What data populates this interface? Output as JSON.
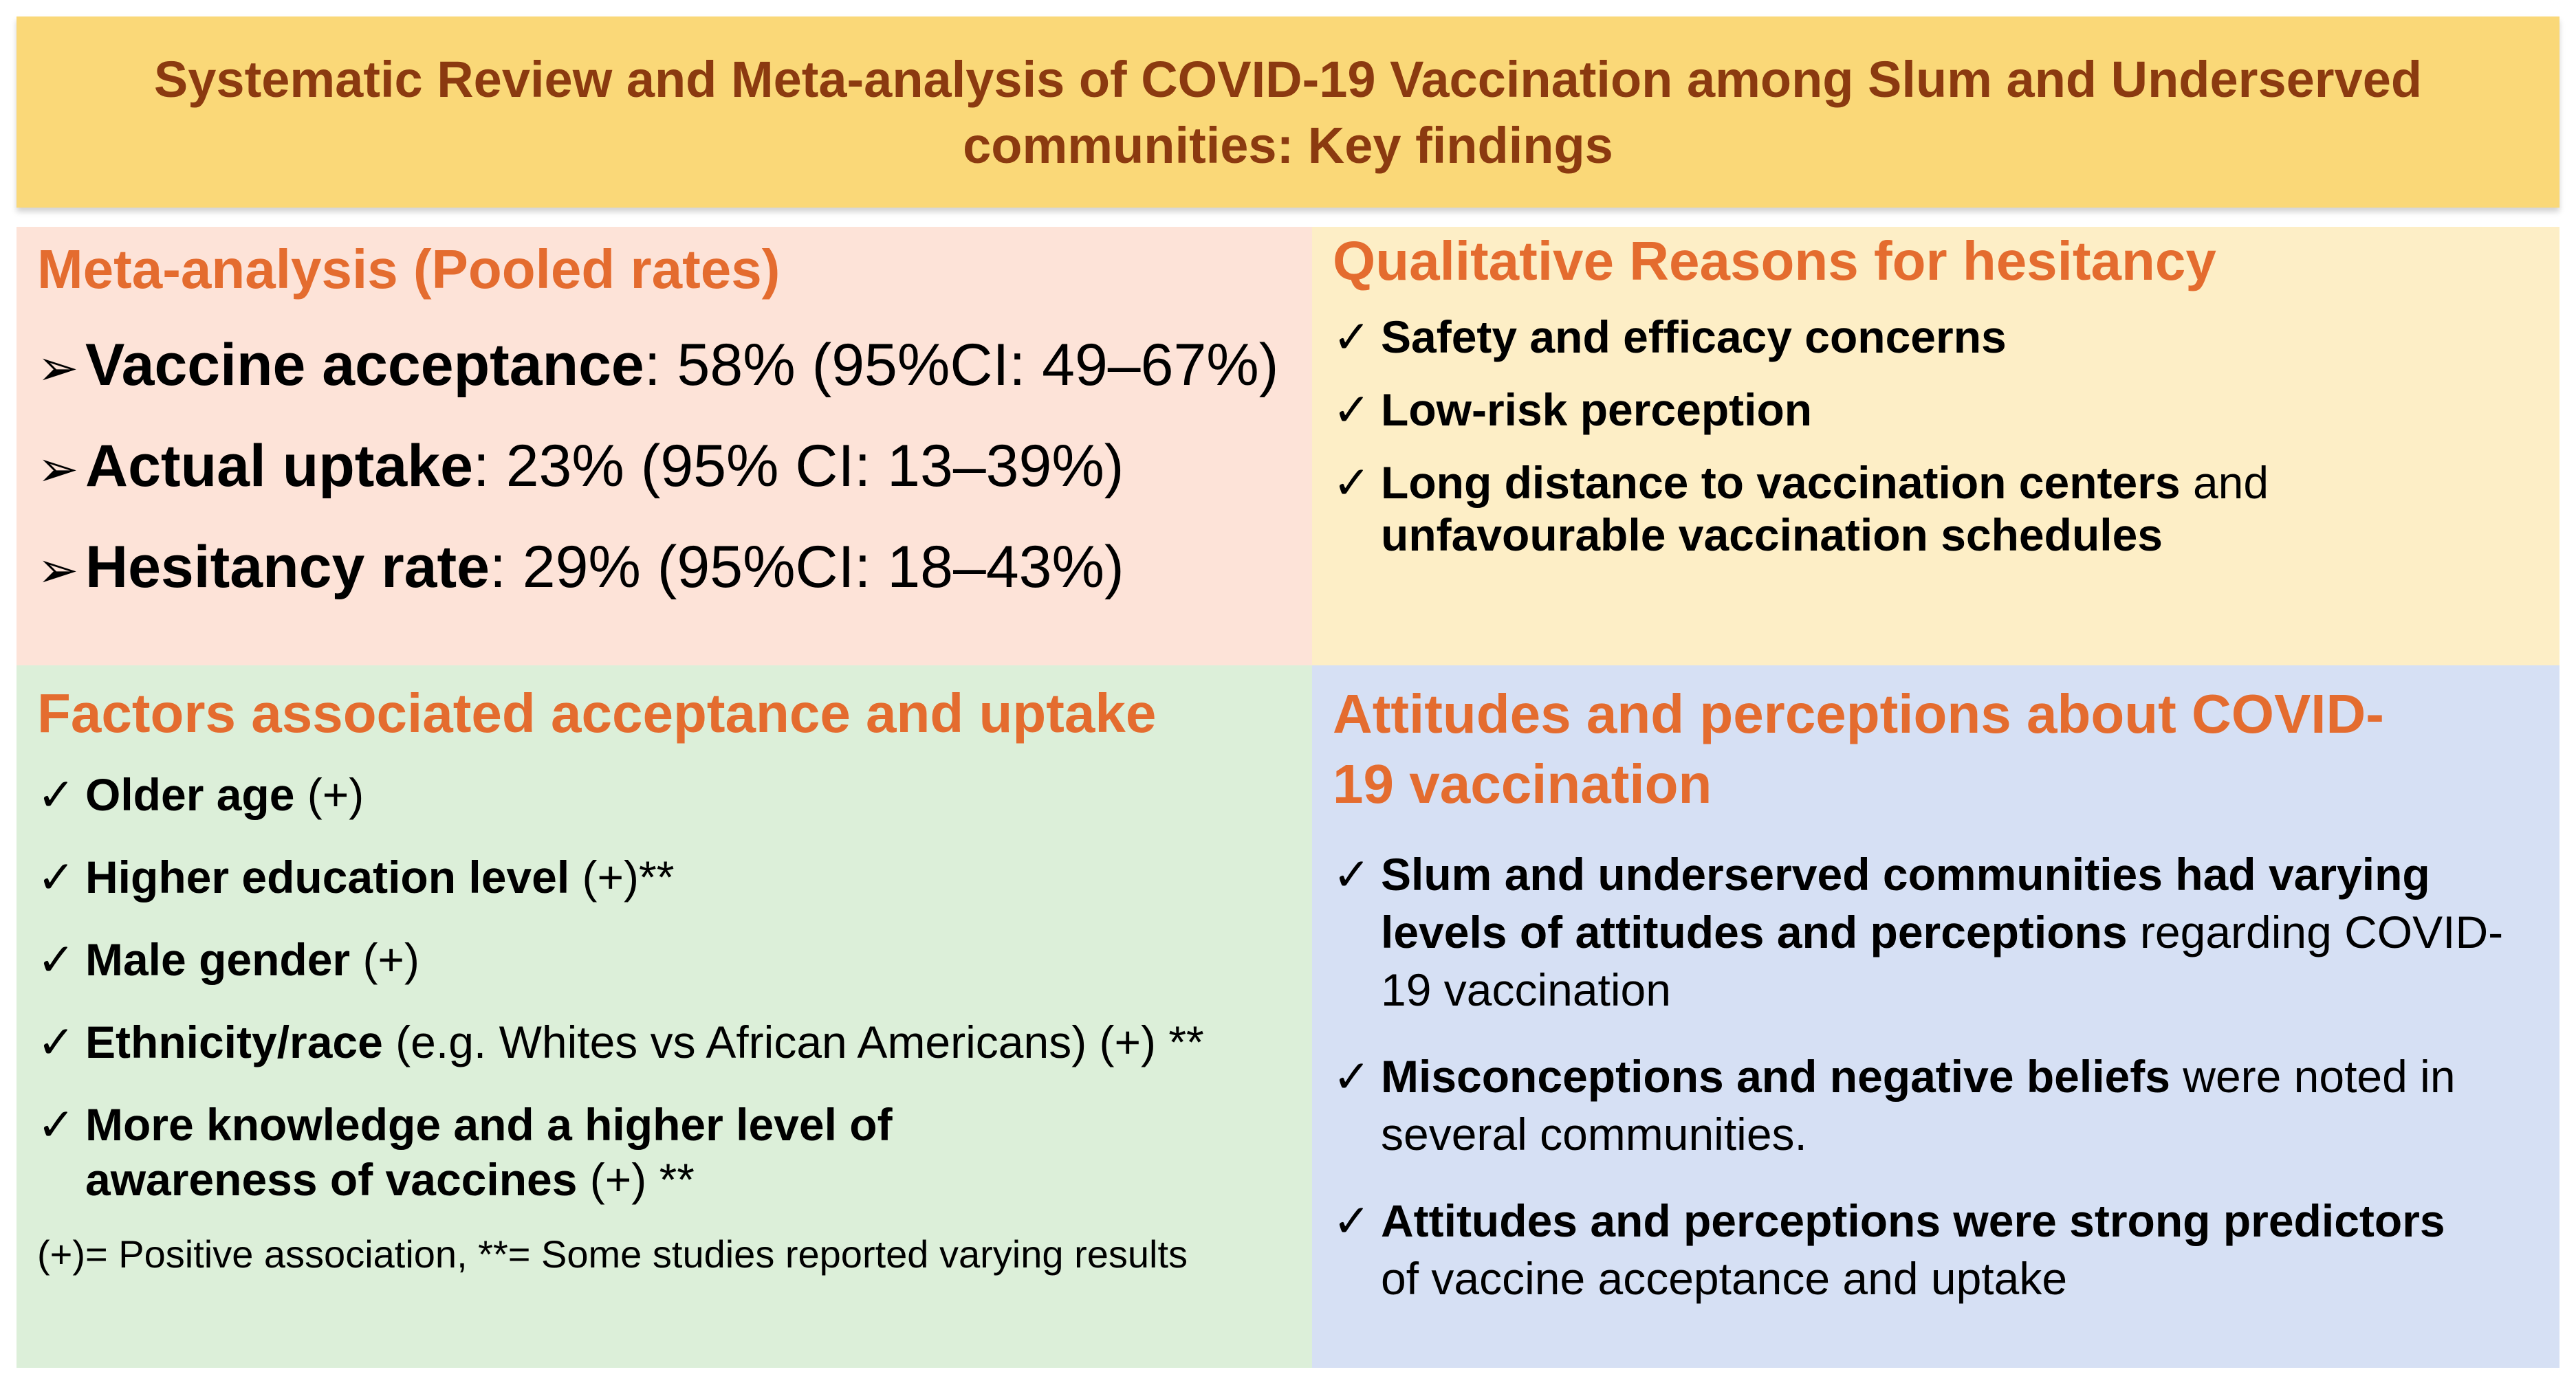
{
  "banner": {
    "line1": "Systematic Review and Meta-analysis of COVID-19 Vaccination among Slum and Underserved",
    "line2": "communities: Key findings"
  },
  "meta": {
    "title": "Meta-analysis (Pooled rates)",
    "marker": "➢",
    "items": [
      {
        "label": "Vaccine acceptance",
        "value": ": 58% (95%CI: 49–67%)"
      },
      {
        "label": "Actual uptake",
        "value": ": 23% (95% CI: 13–39%)"
      },
      {
        "label": "Hesitancy rate",
        "value": ": 29% (95%CI: 18–43%)"
      }
    ]
  },
  "qual": {
    "title": "Qualitative Reasons for hesitancy",
    "check": "✓",
    "items": [
      {
        "b1": "Safety and efficacy concerns"
      },
      {
        "b1": "Low-risk perception"
      },
      {
        "b1": "Long distance to vaccination centers",
        "t1": " and ",
        "b2": "unfavourable vaccination schedules"
      }
    ]
  },
  "factors": {
    "title": "Factors associated acceptance and uptake",
    "check": "✓",
    "items": [
      {
        "b": "Older age",
        "t": " (+)"
      },
      {
        "b": "Higher education level",
        "t": " (+)**"
      },
      {
        "b": "Male gender",
        "t": " (+)"
      },
      {
        "b": "Ethnicity/race",
        "t": " (e.g. Whites vs African Americans) (+) **"
      },
      {
        "b": "More knowledge and a higher level of awareness of vaccines",
        "t": "  (+) **"
      }
    ],
    "note": "(+)= Positive association, **= Some studies reported varying results"
  },
  "attitudes": {
    "title": "Attitudes and perceptions about COVID-19 vaccination",
    "check": "✓",
    "items": [
      {
        "b": "Slum and underserved communities had varying levels of attitudes and perceptions",
        "t": " regarding COVID-19 vaccination"
      },
      {
        "b": " Misconceptions and negative beliefs",
        "t": " were noted in several communities."
      },
      {
        "b": "Attitudes and perceptions were strong predictors",
        "t": " of vaccine acceptance and uptake"
      }
    ]
  }
}
